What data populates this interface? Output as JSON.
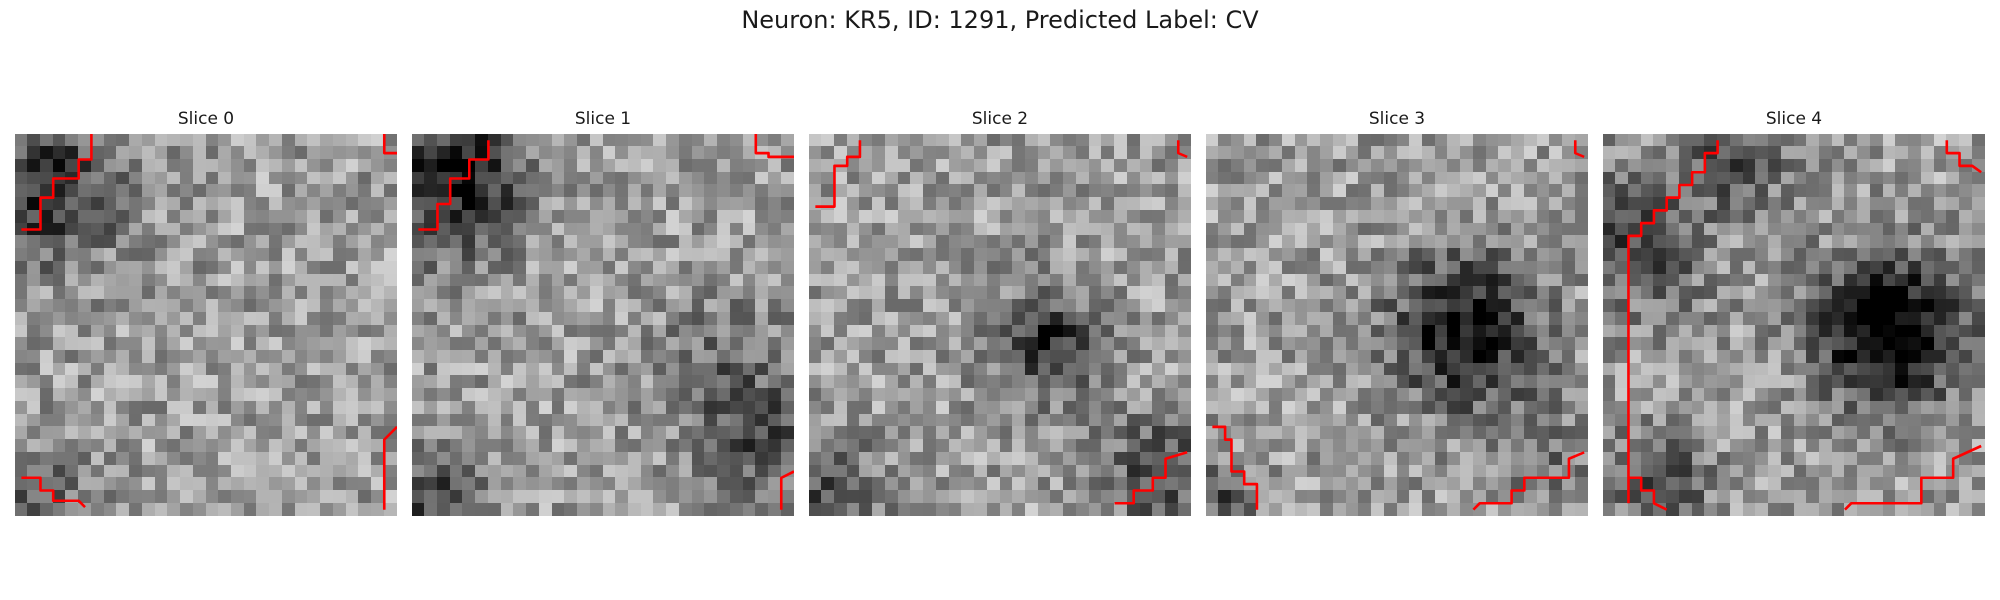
{
  "figure": {
    "title": "Neuron: KR5, ID: 1291, Predicted Label: CV"
  },
  "colors": {
    "contour": "#ff0000",
    "background": "#ffffff",
    "colormap": "grayscale"
  },
  "slices": [
    {
      "title": "Slice 0"
    },
    {
      "title": "Slice 1"
    },
    {
      "title": "Slice 2"
    },
    {
      "title": "Slice 3"
    },
    {
      "title": "Slice 4"
    }
  ]
}
